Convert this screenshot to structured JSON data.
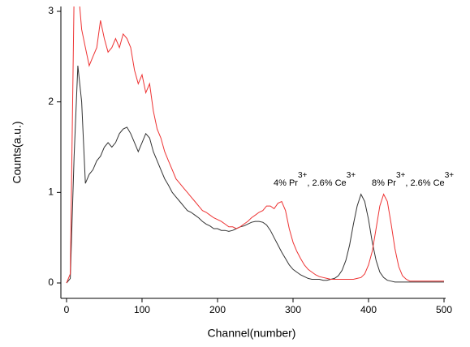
{
  "chart_data": {
    "type": "line",
    "x_label": "Channel(number)",
    "y_label": "Counts(a.u.)",
    "x": [
      0,
      5,
      10,
      15,
      20,
      25,
      30,
      35,
      40,
      45,
      50,
      55,
      60,
      65,
      70,
      75,
      80,
      85,
      90,
      95,
      100,
      105,
      110,
      115,
      120,
      125,
      130,
      135,
      140,
      145,
      150,
      155,
      160,
      165,
      170,
      175,
      180,
      185,
      190,
      195,
      200,
      205,
      210,
      215,
      220,
      225,
      230,
      235,
      240,
      245,
      250,
      255,
      260,
      265,
      270,
      275,
      280,
      285,
      290,
      295,
      300,
      305,
      310,
      315,
      320,
      325,
      330,
      335,
      340,
      345,
      350,
      355,
      360,
      365,
      370,
      375,
      380,
      385,
      390,
      395,
      400,
      405,
      410,
      415,
      420,
      425,
      430,
      435,
      440,
      445,
      450,
      455,
      460,
      465,
      470,
      475,
      480,
      485,
      490,
      495,
      500
    ],
    "series": [
      {
        "color": "#333333",
        "values": [
          0,
          0.05,
          1.4,
          2.4,
          2.0,
          1.1,
          1.2,
          1.25,
          1.35,
          1.4,
          1.5,
          1.55,
          1.5,
          1.55,
          1.65,
          1.7,
          1.72,
          1.65,
          1.55,
          1.45,
          1.55,
          1.65,
          1.6,
          1.45,
          1.35,
          1.25,
          1.15,
          1.08,
          1.0,
          0.95,
          0.9,
          0.85,
          0.8,
          0.78,
          0.75,
          0.72,
          0.68,
          0.65,
          0.63,
          0.6,
          0.6,
          0.58,
          0.58,
          0.57,
          0.58,
          0.6,
          0.62,
          0.63,
          0.65,
          0.67,
          0.68,
          0.68,
          0.67,
          0.64,
          0.58,
          0.5,
          0.42,
          0.34,
          0.27,
          0.2,
          0.15,
          0.12,
          0.09,
          0.07,
          0.05,
          0.04,
          0.04,
          0.04,
          0.03,
          0.03,
          0.04,
          0.05,
          0.08,
          0.14,
          0.25,
          0.42,
          0.65,
          0.85,
          0.98,
          0.9,
          0.7,
          0.45,
          0.25,
          0.12,
          0.06,
          0.03,
          0.02,
          0.01,
          0.01,
          0.01,
          0.01,
          0.01,
          0.01,
          0.01,
          0.01,
          0.01,
          0.01,
          0.01,
          0.01,
          0.01,
          0.01
        ]
      },
      {
        "color": "#ee3333",
        "values": [
          0,
          0.1,
          3.2,
          3.3,
          2.8,
          2.6,
          2.4,
          2.5,
          2.6,
          2.9,
          2.7,
          2.55,
          2.6,
          2.7,
          2.6,
          2.75,
          2.7,
          2.6,
          2.35,
          2.2,
          2.3,
          2.1,
          2.2,
          1.9,
          1.7,
          1.6,
          1.45,
          1.35,
          1.25,
          1.15,
          1.1,
          1.05,
          1.0,
          0.95,
          0.9,
          0.85,
          0.8,
          0.78,
          0.75,
          0.72,
          0.7,
          0.68,
          0.65,
          0.62,
          0.62,
          0.6,
          0.62,
          0.65,
          0.68,
          0.72,
          0.75,
          0.78,
          0.8,
          0.85,
          0.85,
          0.82,
          0.88,
          0.9,
          0.8,
          0.6,
          0.45,
          0.35,
          0.27,
          0.2,
          0.15,
          0.12,
          0.09,
          0.07,
          0.06,
          0.05,
          0.04,
          0.04,
          0.04,
          0.04,
          0.04,
          0.04,
          0.04,
          0.05,
          0.06,
          0.1,
          0.2,
          0.35,
          0.6,
          0.85,
          0.98,
          0.9,
          0.65,
          0.38,
          0.18,
          0.08,
          0.04,
          0.02,
          0.02,
          0.02,
          0.02,
          0.02,
          0.02,
          0.02,
          0.02,
          0.02,
          0.02
        ]
      }
    ],
    "annotations": [
      {
        "parts": [
          "4% Pr",
          "3+",
          ", 2.6% Ce",
          "3+"
        ]
      },
      {
        "parts": [
          "8% Pr",
          "3+",
          ", 2.6% Ce",
          "3+"
        ]
      }
    ],
    "xlim": [
      -7.5,
      500
    ],
    "xticks": [
      0,
      100,
      200,
      300,
      400,
      500
    ],
    "ylim": [
      -0.17,
      3
    ],
    "yticks": [
      0,
      1,
      2,
      3
    ]
  }
}
